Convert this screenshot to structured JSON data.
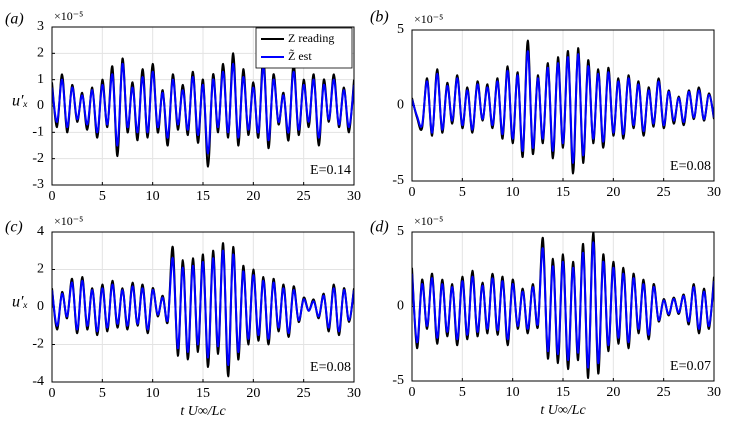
{
  "chart_data": [
    {
      "type": "line",
      "panel_label": "(a)",
      "multiplier": "×10⁻⁵",
      "ylabel": "u′ₓ",
      "annotation": "E=0.14",
      "grid": true,
      "legend": "upper right",
      "xlim": [
        0,
        30
      ],
      "xticks": [
        0,
        5,
        10,
        15,
        20,
        25,
        30
      ],
      "ylim": [
        -3,
        3
      ],
      "yticks": [
        -3,
        -2,
        -1,
        0,
        1,
        2,
        3
      ],
      "x": [
        0,
        0.5,
        1,
        1.5,
        2,
        2.5,
        3,
        3.5,
        4,
        4.5,
        5,
        5.5,
        6,
        6.5,
        7,
        7.5,
        8,
        8.5,
        9,
        9.5,
        10,
        10.5,
        11,
        11.5,
        12,
        12.5,
        13,
        13.5,
        14,
        14.5,
        15,
        15.5,
        16,
        16.5,
        17,
        17.5,
        18,
        18.5,
        19,
        19.5,
        20,
        20.5,
        21,
        21.5,
        22,
        22.5,
        23,
        23.5,
        24,
        24.5,
        25,
        25.5,
        26,
        26.5,
        27,
        27.5,
        28,
        28.5,
        29,
        29.5,
        30
      ],
      "series": [
        {
          "name": "Z reading",
          "color": "#000000",
          "values": [
            0.9,
            -0.8,
            1.2,
            -1.0,
            0.8,
            -0.6,
            0.5,
            -0.9,
            0.7,
            -1.2,
            1.0,
            -0.8,
            1.5,
            -1.9,
            1.8,
            -1.0,
            0.9,
            -1.3,
            1.4,
            -1.2,
            1.6,
            -1.0,
            0.6,
            -1.5,
            1.2,
            -0.9,
            0.8,
            -1.1,
            1.3,
            -1.4,
            1.0,
            -2.3,
            1.2,
            -1.0,
            1.6,
            -1.2,
            2.0,
            -1.5,
            1.4,
            -1.1,
            0.9,
            -1.2,
            1.9,
            -1.6,
            1.2,
            -0.7,
            0.5,
            -1.3,
            1.6,
            -1.1,
            1.0,
            -0.8,
            1.2,
            -1.5,
            1.0,
            -0.6,
            1.2,
            -0.8,
            0.7,
            -1.0,
            1.0
          ]
        },
        {
          "name": "Z̃ est",
          "color": "#0000ff",
          "values": [
            0.7,
            -0.6,
            1.0,
            -0.8,
            0.7,
            -0.5,
            0.4,
            -0.7,
            0.6,
            -1.0,
            0.8,
            -0.7,
            1.2,
            -1.5,
            1.6,
            -0.8,
            0.7,
            -1.0,
            1.1,
            -1.0,
            1.3,
            -0.8,
            0.5,
            -1.2,
            1.0,
            -0.7,
            0.6,
            -0.9,
            1.1,
            -1.1,
            0.8,
            -1.8,
            1.0,
            -0.8,
            1.3,
            -1.0,
            1.6,
            -1.2,
            1.1,
            -0.9,
            0.7,
            -1.0,
            1.5,
            -1.3,
            1.0,
            -0.6,
            0.4,
            -1.0,
            1.3,
            -0.9,
            0.8,
            -0.6,
            1.0,
            -1.2,
            0.8,
            -0.5,
            1.0,
            -0.7,
            0.6,
            -0.8,
            0.8
          ]
        }
      ]
    },
    {
      "type": "line",
      "panel_label": "(b)",
      "multiplier": "×10⁻⁵",
      "annotation": "E=0.08",
      "grid": true,
      "xlim": [
        0,
        30
      ],
      "xticks": [
        0,
        5,
        10,
        15,
        20,
        25,
        30
      ],
      "ylim": [
        -5,
        5
      ],
      "yticks": [
        -5,
        0,
        5
      ],
      "x": [
        0,
        0.5,
        1,
        1.5,
        2,
        2.5,
        3,
        3.5,
        4,
        4.5,
        5,
        5.5,
        6,
        6.5,
        7,
        7.5,
        8,
        8.5,
        9,
        9.5,
        10,
        10.5,
        11,
        11.5,
        12,
        12.5,
        13,
        13.5,
        14,
        14.5,
        15,
        15.5,
        16,
        16.5,
        17,
        17.5,
        18,
        18.5,
        19,
        19.5,
        20,
        20.5,
        21,
        21.5,
        22,
        22.5,
        23,
        23.5,
        24,
        24.5,
        25,
        25.5,
        26,
        26.5,
        27,
        27.5,
        28,
        28.5,
        29,
        29.5,
        30
      ],
      "series": [
        {
          "name": "Z reading",
          "color": "#000000",
          "values": [
            0.5,
            -0.8,
            -1.5,
            1.8,
            -2.0,
            2.4,
            -1.8,
            1.5,
            -1.2,
            2.0,
            -1.5,
            1.2,
            -1.8,
            1.6,
            -1.0,
            1.4,
            -1.5,
            1.8,
            -2.2,
            2.6,
            -2.5,
            2.2,
            -3.4,
            4.3,
            -3.2,
            2.0,
            -2.5,
            2.8,
            -3.5,
            3.2,
            -2.8,
            3.6,
            -4.5,
            3.8,
            -3.8,
            3.0,
            -2.5,
            2.4,
            -2.8,
            2.5,
            -2.0,
            1.8,
            -2.2,
            2.0,
            -1.5,
            1.6,
            -2.0,
            1.2,
            -1.4,
            1.8,
            -1.5,
            1.0,
            -1.2,
            0.6,
            -1.3,
            1.0,
            -0.9,
            1.2,
            -1.0,
            0.8,
            -0.9
          ]
        },
        {
          "name": "Z̃ est",
          "color": "#0000ff",
          "values": [
            0.4,
            -0.7,
            -1.3,
            1.6,
            -1.8,
            2.1,
            -1.6,
            1.3,
            -1.0,
            1.8,
            -1.3,
            1.0,
            -1.6,
            1.4,
            -0.9,
            1.2,
            -1.3,
            1.6,
            -1.9,
            2.3,
            -2.2,
            2.0,
            -3.0,
            3.6,
            -2.8,
            1.8,
            -2.2,
            2.5,
            -3.0,
            2.8,
            -2.5,
            3.2,
            -3.8,
            3.4,
            -3.3,
            2.6,
            -2.2,
            2.1,
            -2.4,
            2.2,
            -1.8,
            1.6,
            -1.9,
            1.8,
            -1.3,
            1.4,
            -1.7,
            1.0,
            -1.2,
            1.6,
            -1.3,
            0.9,
            -1.0,
            0.5,
            -1.1,
            0.9,
            -0.8,
            1.0,
            -0.9,
            0.7,
            -0.8
          ]
        }
      ]
    },
    {
      "type": "line",
      "panel_label": "(c)",
      "multiplier": "×10⁻⁵",
      "ylabel": "u′ₓ",
      "xlabel": "t U∞/Lc",
      "annotation": "E=0.08",
      "grid": true,
      "xlim": [
        0,
        30
      ],
      "xticks": [
        0,
        5,
        10,
        15,
        20,
        25,
        30
      ],
      "ylim": [
        -4,
        4
      ],
      "yticks": [
        -4,
        -2,
        0,
        2,
        4
      ],
      "x": [
        0,
        0.5,
        1,
        1.5,
        2,
        2.5,
        3,
        3.5,
        4,
        4.5,
        5,
        5.5,
        6,
        6.5,
        7,
        7.5,
        8,
        8.5,
        9,
        9.5,
        10,
        10.5,
        11,
        11.5,
        12,
        12.5,
        13,
        13.5,
        14,
        14.5,
        15,
        15.5,
        16,
        16.5,
        17,
        17.5,
        18,
        18.5,
        19,
        19.5,
        20,
        20.5,
        21,
        21.5,
        22,
        22.5,
        23,
        23.5,
        24,
        24.5,
        25,
        25.5,
        26,
        26.5,
        27,
        27.5,
        28,
        28.5,
        29,
        29.5,
        30
      ],
      "series": [
        {
          "name": "Z reading",
          "color": "#000000",
          "values": [
            1.0,
            -1.2,
            0.8,
            -0.6,
            1.5,
            -1.4,
            1.6,
            -1.2,
            1.0,
            -1.5,
            1.2,
            -1.3,
            1.4,
            -1.1,
            1.0,
            -1.2,
            1.3,
            -1.0,
            1.2,
            -1.4,
            1.0,
            -0.5,
            0.6,
            -0.8,
            3.2,
            -2.6,
            2.5,
            -2.8,
            2.6,
            -2.4,
            2.8,
            -3.2,
            3.0,
            -2.5,
            3.4,
            -3.7,
            3.2,
            -2.8,
            2.2,
            -2.0,
            2.0,
            -1.8,
            1.6,
            -2.0,
            1.5,
            -1.3,
            1.2,
            -1.6,
            1.1,
            -0.8,
            0.5,
            -0.2,
            0.4,
            -0.6,
            0.7,
            -1.3,
            1.2,
            -1.5,
            1.0,
            -0.8,
            1.0
          ]
        },
        {
          "name": "Z̃ est",
          "color": "#0000ff",
          "values": [
            0.9,
            -1.0,
            0.7,
            -0.5,
            1.3,
            -1.2,
            1.4,
            -1.0,
            0.9,
            -1.3,
            1.0,
            -1.1,
            1.2,
            -0.9,
            0.9,
            -1.0,
            1.1,
            -0.9,
            1.0,
            -1.2,
            0.9,
            -0.4,
            0.5,
            -0.7,
            2.6,
            -2.2,
            2.1,
            -2.4,
            2.2,
            -2.0,
            2.4,
            -2.7,
            2.6,
            -2.1,
            3.0,
            -3.1,
            2.8,
            -2.4,
            1.9,
            -1.7,
            1.7,
            -1.5,
            1.4,
            -1.7,
            1.3,
            -1.1,
            1.0,
            -1.4,
            0.9,
            -0.7,
            0.4,
            -0.2,
            0.3,
            -0.5,
            0.6,
            -1.1,
            1.0,
            -1.3,
            0.9,
            -0.7,
            0.9
          ]
        }
      ]
    },
    {
      "type": "line",
      "panel_label": "(d)",
      "multiplier": "×10⁻⁵",
      "xlabel": "t U∞/Lc",
      "annotation": "E=0.07",
      "grid": true,
      "xlim": [
        0,
        30
      ],
      "xticks": [
        0,
        5,
        10,
        15,
        20,
        25,
        30
      ],
      "ylim": [
        -5,
        5
      ],
      "yticks": [
        -5,
        0,
        5
      ],
      "x": [
        0,
        0.5,
        1,
        1.5,
        2,
        2.5,
        3,
        3.5,
        4,
        4.5,
        5,
        5.5,
        6,
        6.5,
        7,
        7.5,
        8,
        8.5,
        9,
        9.5,
        10,
        10.5,
        11,
        11.5,
        12,
        12.5,
        13,
        13.5,
        14,
        14.5,
        15,
        15.5,
        16,
        16.5,
        17,
        17.5,
        18,
        18.5,
        19,
        19.5,
        20,
        20.5,
        21,
        21.5,
        22,
        22.5,
        23,
        23.5,
        24,
        24.5,
        25,
        25.5,
        26,
        26.5,
        27,
        27.5,
        28,
        28.5,
        29,
        29.5,
        30
      ],
      "series": [
        {
          "name": "Z reading",
          "color": "#000000",
          "values": [
            2.6,
            -2.8,
            1.8,
            -1.5,
            2.2,
            -2.5,
            1.8,
            -2.0,
            1.5,
            -2.6,
            2.0,
            -2.2,
            2.4,
            -2.0,
            1.6,
            -1.8,
            2.2,
            -1.9,
            2.0,
            -2.6,
            1.8,
            -1.5,
            1.2,
            -1.8,
            1.5,
            -1.4,
            4.6,
            -3.5,
            3.2,
            -3.8,
            3.5,
            -4.2,
            3.0,
            -3.6,
            4.2,
            -4.8,
            5.0,
            -4.5,
            3.5,
            -3.0,
            3.0,
            -2.5,
            2.6,
            -2.8,
            2.2,
            -1.8,
            1.8,
            -2.2,
            1.5,
            -1.0,
            0.5,
            -0.6,
            0.6,
            -0.5,
            0.8,
            -1.2,
            1.5,
            -1.8,
            1.2,
            -1.5,
            2.0
          ]
        },
        {
          "name": "Z̃ est",
          "color": "#0000ff",
          "values": [
            2.2,
            -2.4,
            1.5,
            -1.3,
            1.9,
            -2.1,
            1.5,
            -1.7,
            1.3,
            -2.2,
            1.7,
            -1.9,
            2.0,
            -1.7,
            1.4,
            -1.5,
            1.9,
            -1.6,
            1.7,
            -2.2,
            1.5,
            -1.3,
            1.0,
            -1.5,
            1.3,
            -1.2,
            3.9,
            -3.0,
            2.7,
            -3.2,
            3.0,
            -3.6,
            2.6,
            -3.1,
            3.6,
            -4.1,
            4.3,
            -3.8,
            3.0,
            -2.6,
            2.6,
            -2.1,
            2.2,
            -2.4,
            1.9,
            -1.5,
            1.5,
            -1.9,
            1.3,
            -0.9,
            0.4,
            -0.5,
            0.5,
            -0.4,
            0.7,
            -1.0,
            1.3,
            -1.5,
            1.0,
            -1.3,
            1.7
          ]
        }
      ]
    }
  ]
}
